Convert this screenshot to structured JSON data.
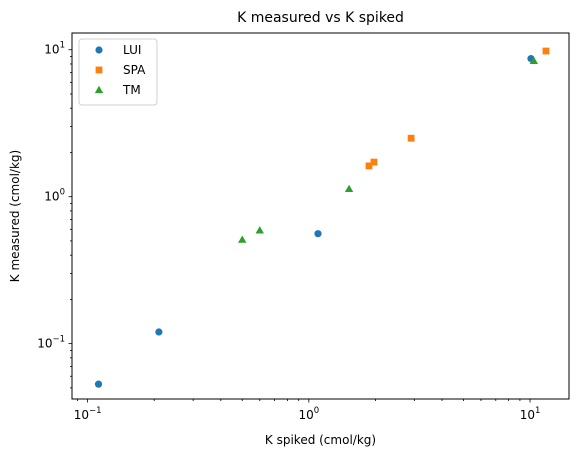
{
  "chart_data": {
    "type": "scatter",
    "title": "K measured vs K spiked",
    "xlabel": "K spiked (cmol/kg)",
    "ylabel": "K measured (cmol/kg)",
    "xscale": "log",
    "yscale": "log",
    "xlim": [
      0.085,
      15
    ],
    "ylim": [
      0.042,
      13
    ],
    "grid": false,
    "legend": "top-left",
    "x_major_ticks": [
      {
        "value": 0.1,
        "base": "10",
        "exp": "−1"
      },
      {
        "value": 1,
        "base": "10",
        "exp": "0"
      },
      {
        "value": 10,
        "base": "10",
        "exp": "1"
      }
    ],
    "y_major_ticks": [
      {
        "value": 0.1,
        "base": "10",
        "exp": "−1"
      },
      {
        "value": 1,
        "base": "10",
        "exp": "0"
      },
      {
        "value": 10,
        "base": "10",
        "exp": "1"
      }
    ],
    "series": [
      {
        "name": "LUI",
        "marker": "circle",
        "color": "#1f77b4",
        "points": [
          [
            0.112,
            0.053
          ],
          [
            0.21,
            0.12
          ],
          [
            1.1,
            0.56
          ],
          [
            10.1,
            8.7
          ]
        ]
      },
      {
        "name": "SPA",
        "marker": "square",
        "color": "#ff7f0e",
        "points": [
          [
            1.87,
            1.62
          ],
          [
            1.97,
            1.72
          ],
          [
            2.9,
            2.5
          ],
          [
            11.8,
            9.8
          ]
        ]
      },
      {
        "name": "TM",
        "marker": "triangle",
        "color": "#2ca02c",
        "points": [
          [
            0.5,
            0.51
          ],
          [
            0.6,
            0.59
          ],
          [
            1.52,
            1.13
          ],
          [
            10.4,
            8.4
          ]
        ]
      }
    ]
  }
}
